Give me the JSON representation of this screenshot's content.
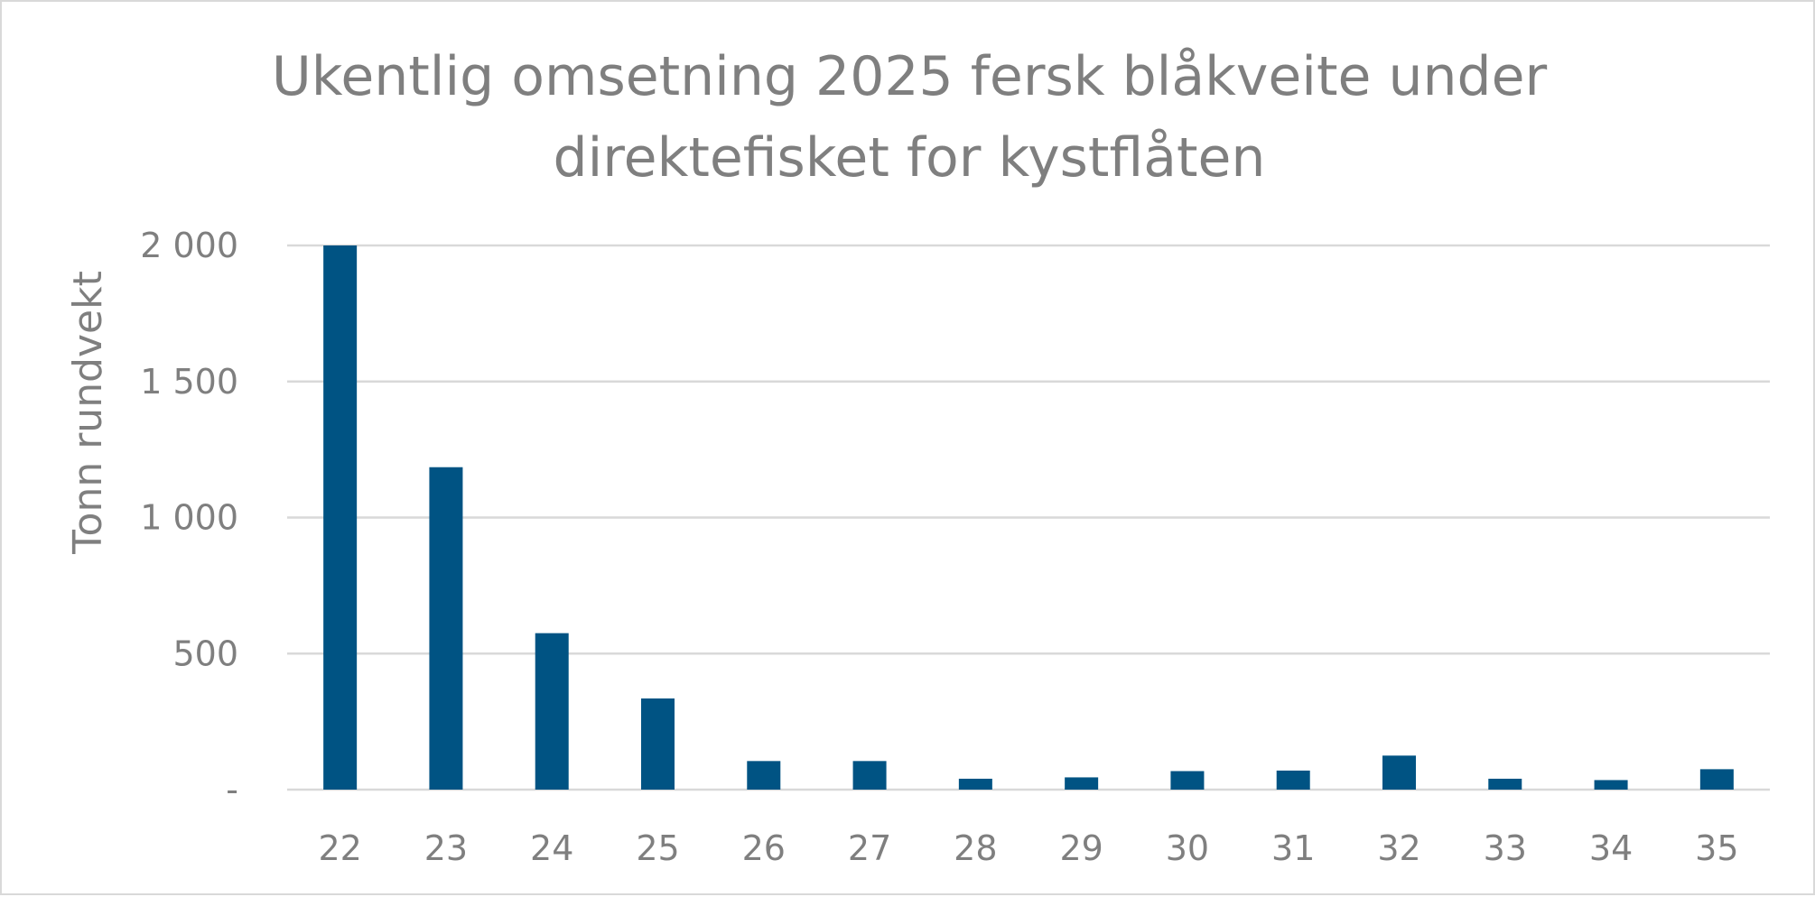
{
  "chart_data": {
    "type": "bar",
    "title": "Ukentlig omsetning 2025 fersk blåkveite under direktefisket for kystflåten",
    "title_lines": [
      "Ukentlig omsetning 2025 fersk blåkveite under",
      "direktefisket for kystflåten"
    ],
    "xlabel": "",
    "ylabel": "Tonn rundvekt",
    "categories": [
      "22",
      "23",
      "24",
      "25",
      "26",
      "27",
      "28",
      "29",
      "30",
      "31",
      "32",
      "33",
      "34",
      "35"
    ],
    "values": [
      2000,
      1185,
      575,
      335,
      105,
      105,
      40,
      45,
      68,
      70,
      125,
      40,
      35,
      75
    ],
    "ylim": [
      0,
      2000
    ],
    "yticks": [
      0,
      500,
      1000,
      1500,
      2000
    ],
    "ytick_labels": [
      "-",
      "500",
      "1 000",
      "1 500",
      "2 000"
    ],
    "grid": true,
    "legend": "none",
    "colors": {
      "bar": "#005383",
      "gridline": "#d9d9d9",
      "text": "#7f7f7f"
    }
  }
}
